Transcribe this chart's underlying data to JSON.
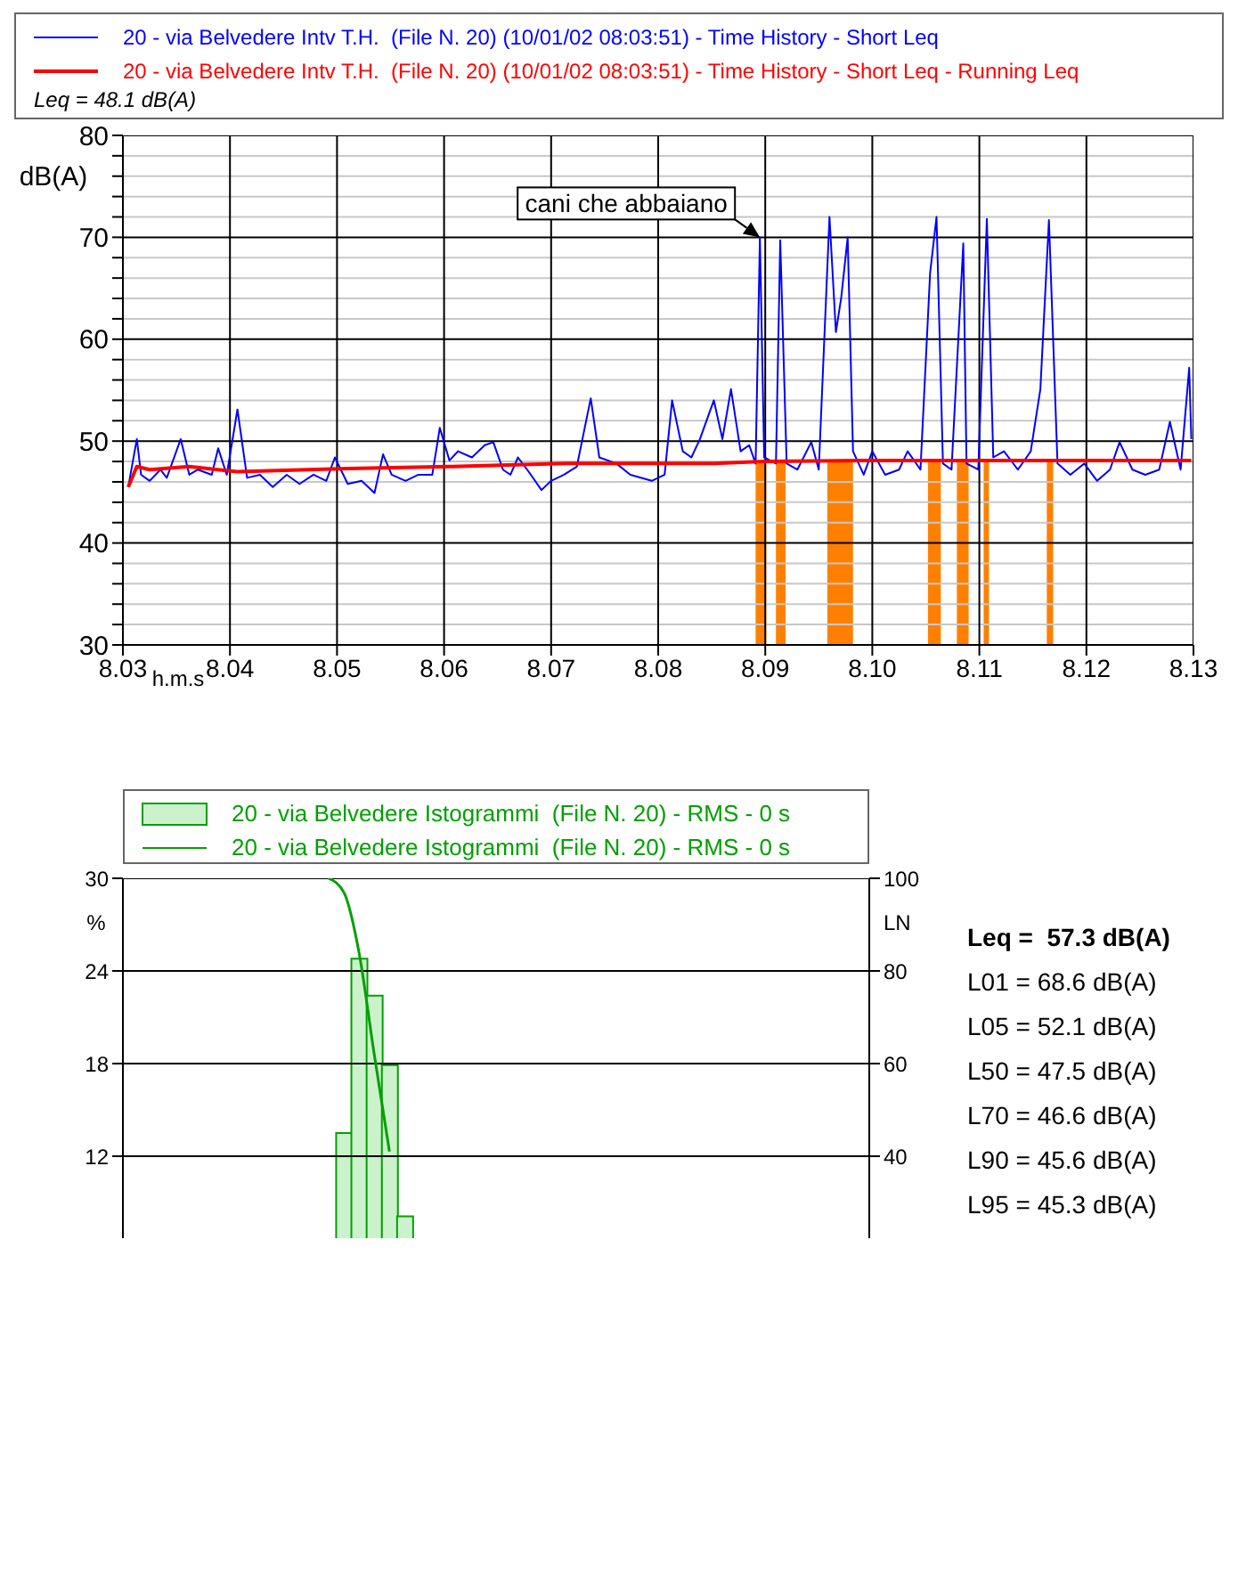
{
  "chart_data": [
    {
      "type": "line",
      "xlabel": "h.m.s",
      "ylabel": "dB(A)",
      "xlim": [
        8.03,
        8.13
      ],
      "xticks": [
        8.03,
        8.04,
        8.05,
        8.06,
        8.07,
        8.08,
        8.09,
        {
          "value": 8.1,
          "label": "8.10"
        },
        8.11,
        8.12,
        8.13
      ],
      "ylim": [
        30,
        80
      ],
      "yticks": [
        30,
        {
          "value": 32,
          "label": null
        },
        {
          "value": 34,
          "label": null
        },
        {
          "value": 36,
          "label": null
        },
        {
          "value": 38,
          "label": null
        },
        40,
        {
          "value": 42,
          "label": null
        },
        {
          "value": 44,
          "label": null
        },
        {
          "value": 46,
          "label": null
        },
        {
          "value": 48,
          "label": null
        },
        50,
        {
          "value": 52,
          "label": null
        },
        {
          "value": 54,
          "label": null
        },
        {
          "value": 56,
          "label": null
        },
        {
          "value": 58,
          "label": null
        },
        60,
        {
          "value": 62,
          "label": null
        },
        {
          "value": 64,
          "label": null
        },
        {
          "value": 66,
          "label": null
        },
        {
          "value": 68,
          "label": null
        },
        70,
        {
          "value": 72,
          "label": null
        },
        {
          "value": 74,
          "label": null
        },
        {
          "value": 76,
          "label": null
        },
        {
          "value": 78,
          "label": null
        },
        80
      ],
      "grid": true,
      "legend": "top",
      "series": [
        {
          "name": "20 - via Belvedere Intv T.H.  (File N. 20) (10/01/02 08:03:51) - Time History - Short Leq",
          "color": "#0000ff",
          "x": [
            8.0305,
            8.0313,
            8.0317,
            8.0325,
            8.0335,
            8.0341,
            8.0354,
            8.0362,
            8.037,
            8.0383,
            8.0389,
            8.0397,
            8.0407,
            8.0416,
            8.0428,
            8.044,
            8.0453,
            8.0465,
            8.0478,
            8.049,
            8.0498,
            8.051,
            8.0523,
            8.0535,
            8.0543,
            8.0551,
            8.0564,
            8.0576,
            8.0589,
            8.0596,
            8.0605,
            8.0613,
            8.0626,
            8.0638,
            8.0646,
            8.0655,
            8.0662,
            8.0669,
            8.0679,
            8.0691,
            8.07,
            8.0712,
            8.0724,
            8.0737,
            8.0745,
            8.0761,
            8.0774,
            8.0794,
            8.0806,
            8.0813,
            8.0823,
            8.0831,
            8.0839,
            8.0852,
            8.086,
            8.0868,
            8.0877,
            8.0885,
            8.0891,
            8.0895,
            8.0899,
            8.091,
            8.0914,
            8.092,
            8.093,
            8.0943,
            8.095,
            8.096,
            8.0966,
            8.0971,
            8.0977,
            8.0982,
            8.0992,
            8.1,
            8.1012,
            8.1025,
            8.1033,
            8.1045,
            8.1054,
            8.106,
            8.1066,
            8.1074,
            8.1085,
            8.1088,
            8.1099,
            8.1107,
            8.1113,
            8.1123,
            8.1136,
            8.1148,
            8.1157,
            8.1165,
            8.1173,
            8.1185,
            8.1198,
            8.121,
            8.1222,
            8.1231,
            8.1243,
            8.1255,
            8.1268,
            8.1278,
            8.1288,
            8.1296,
            8.1298
          ],
          "values": [
            45.5,
            50.2,
            46.7,
            46.1,
            47.2,
            46.4,
            50.2,
            46.7,
            47.2,
            46.7,
            49.3,
            46.7,
            53.1,
            46.4,
            46.7,
            45.5,
            46.7,
            45.8,
            46.7,
            46.1,
            48.4,
            45.8,
            46.1,
            44.9,
            48.7,
            46.7,
            46.1,
            46.7,
            46.7,
            51.3,
            48.1,
            49.0,
            48.4,
            49.6,
            49.9,
            47.2,
            46.7,
            48.4,
            47.0,
            45.2,
            46.1,
            46.7,
            47.5,
            54.2,
            48.4,
            47.8,
            46.7,
            46.1,
            46.7,
            54.0,
            49.0,
            48.4,
            50.2,
            54.0,
            50.2,
            55.1,
            49.0,
            49.6,
            47.8,
            70.0,
            48.4,
            47.8,
            69.7,
            47.8,
            47.2,
            49.9,
            47.2,
            72.0,
            60.7,
            64.1,
            70.0,
            49.0,
            46.7,
            49.0,
            46.7,
            47.2,
            49.0,
            47.2,
            66.5,
            72.0,
            47.8,
            47.2,
            69.4,
            47.8,
            47.2,
            71.8,
            48.4,
            49.0,
            47.2,
            49.0,
            55.1,
            71.7,
            47.8,
            46.7,
            47.8,
            46.1,
            47.2,
            49.9,
            47.2,
            46.7,
            47.2,
            51.9,
            47.2,
            57.2,
            50.2
          ]
        },
        {
          "name": "20 - via Belvedere Intv T.H.  (File N. 20) (10/01/02 08:03:51) - Time History - Short Leq - Running Leq",
          "color": "#ff0000",
          "x": [
            8.0305,
            8.0313,
            8.0325,
            8.0362,
            8.0407,
            8.051,
            8.0605,
            8.0712,
            8.0852,
            8.0899,
            8.0992,
            8.1298
          ],
          "values": [
            45.5,
            47.5,
            47.2,
            47.5,
            47.0,
            47.3,
            47.5,
            47.8,
            47.8,
            48.0,
            48.1,
            48.1
          ]
        }
      ],
      "bands": [
        {
          "axis": "x",
          "from": 8.0891,
          "to": 8.0901,
          "color": "#ff8000"
        },
        {
          "axis": "x",
          "from": 8.091,
          "to": 8.0919,
          "color": "#ff8000"
        },
        {
          "axis": "x",
          "from": 8.0958,
          "to": 8.0982,
          "color": "#ff8000"
        },
        {
          "axis": "x",
          "from": 8.1052,
          "to": 8.1064,
          "color": "#ff8000"
        },
        {
          "axis": "x",
          "from": 8.1079,
          "to": 8.109,
          "color": "#ff8000"
        },
        {
          "axis": "x",
          "from": 8.1104,
          "to": 8.1109,
          "color": "#ff8000"
        },
        {
          "axis": "x",
          "from": 8.1163,
          "to": 8.1169,
          "color": "#ff8000"
        }
      ],
      "annotations": [
        "Leq = 48.1 dB(A)",
        {
          "text": "cani che abbaiano",
          "x": 8.0895,
          "y": 70.0
        }
      ]
    },
    {
      "type": "bar",
      "ylabel": "%",
      "y2label": "LN",
      "legend": "top",
      "grid": "y",
      "categories": [
        null,
        null,
        null,
        null,
        null,
        null,
        null,
        null,
        null,
        null,
        null,
        null,
        null,
        null,
        null,
        null,
        null,
        null,
        null,
        null,
        null,
        null,
        null,
        null,
        null,
        null,
        null,
        null,
        null,
        null,
        null,
        null,
        null,
        null,
        null,
        null,
        null,
        null,
        null,
        null,
        null,
        null,
        null,
        null,
        null,
        null,
        null,
        null,
        null
      ],
      "ylim": [
        0,
        30
      ],
      "yticks": [
        12,
        18,
        24,
        30
      ],
      "y2lim": [
        0,
        100
      ],
      "y2ticks": [
        40,
        60,
        80,
        100
      ],
      "series": [
        {
          "name": "20 - via Belvedere Istogrammi  (File N. 20) - RMS - 0 s",
          "color": "#ccf2cc",
          "values": [
            null,
            null,
            null,
            null,
            null,
            null,
            null,
            null,
            null,
            null,
            null,
            null,
            null,
            null,
            13.5,
            24.8,
            22.4,
            17.9,
            8.1,
            null,
            null,
            null,
            null,
            null,
            null,
            null,
            null,
            null,
            null,
            null,
            null,
            null,
            null,
            null,
            null,
            null,
            null,
            null,
            null,
            null,
            null,
            null,
            null,
            null,
            null,
            null,
            null,
            null,
            null
          ]
        },
        {
          "name": "20 - via Belvedere Istogrammi  (File N. 20) - RMS - 0 s",
          "type": "line",
          "axis": "y2",
          "color": "#00a000",
          "values": [
            null,
            null,
            null,
            null,
            null,
            null,
            null,
            null,
            null,
            null,
            null,
            null,
            null,
            100,
            97,
            84,
            62,
            41,
            null,
            null,
            null,
            null,
            null,
            null,
            null,
            null,
            null,
            null,
            null,
            null,
            null,
            null,
            null,
            null,
            null,
            null,
            null,
            null,
            null,
            null,
            null,
            null,
            null,
            null,
            null,
            null,
            null,
            null,
            null
          ]
        }
      ],
      "annotations": [
        "Leq =  57.3 dB(A)",
        "L01 = 68.6 dB(A)",
        "L05 = 52.1 dB(A)",
        "L50 = 47.5 dB(A)",
        "L70 = 46.6 dB(A)",
        "L90 = 45.6 dB(A)",
        "L95 = 45.3 dB(A)"
      ]
    }
  ]
}
